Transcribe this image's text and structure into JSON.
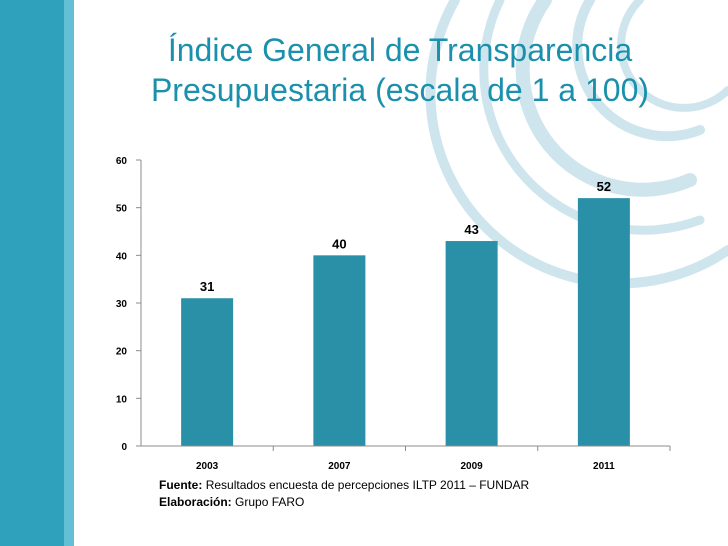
{
  "theme": {
    "band_dark": "#2fa1bd",
    "band_light": "#63bfd4",
    "title_color": "#1a90ad",
    "bar_color": "#2a90a8",
    "deco_color": "#cfe5ee"
  },
  "title": {
    "line1": "Índice General de Transparencia",
    "line2": "Presupuestaria (escala de 1 a 100)"
  },
  "chart_data": {
    "type": "bar",
    "title": "Índice General de Transparencia Presupuestaria (escala de 1 a 100)",
    "categories": [
      "2003",
      "2007",
      "2009",
      "2011"
    ],
    "values": [
      31,
      40,
      43,
      52
    ],
    "value_labels": [
      "31",
      "40",
      "43",
      "52"
    ],
    "yticks": [
      "0",
      "10",
      "20",
      "30",
      "40",
      "50",
      "60"
    ],
    "ylim": [
      0,
      60
    ],
    "xlabel": "",
    "ylabel": "",
    "grid": false,
    "legend": "none"
  },
  "footer": {
    "source_label": "Fuente:",
    "source_text": "Resultados encuesta de  percepciones ILTP 2011 – FUNDAR",
    "author_label": "Elaboración:",
    "author_text": "Grupo FARO"
  }
}
